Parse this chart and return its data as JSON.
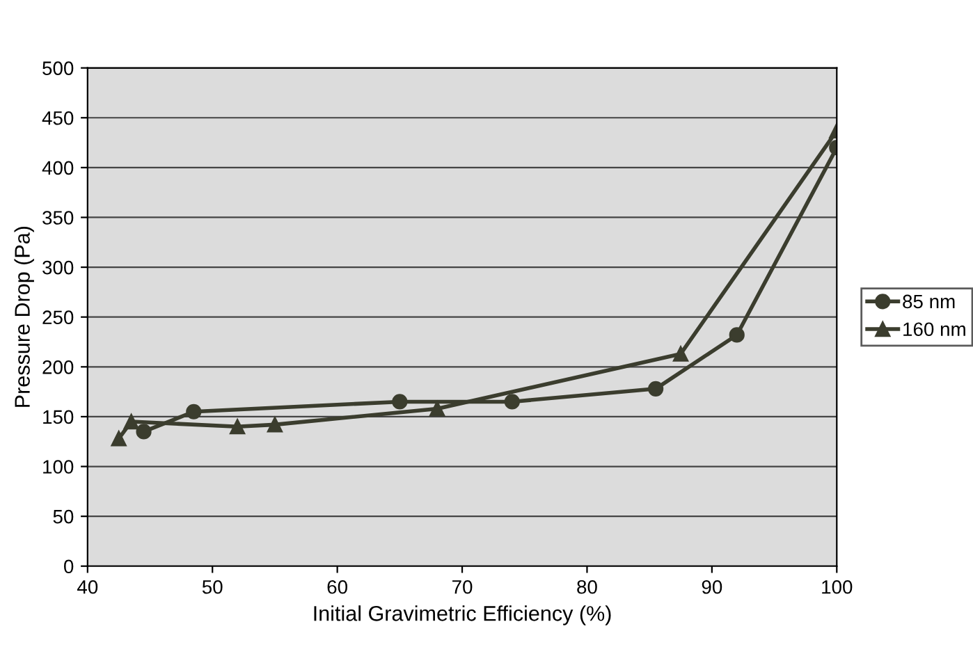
{
  "chart_data": {
    "type": "line",
    "xlabel": "Initial Gravimetric Efficiency (%)",
    "ylabel": "Pressure Drop (Pa)",
    "series": [
      {
        "name": "85 nm",
        "color": "#3b3d2e",
        "marker": "circle",
        "x": [
          44.5,
          48.5,
          65,
          74,
          85.5,
          92,
          100
        ],
        "values": [
          135,
          155,
          165,
          165,
          178,
          232,
          420
        ]
      },
      {
        "name": "160 nm",
        "color": "#3b3d2e",
        "marker": "triangle",
        "x": [
          42.5,
          43.5,
          52,
          55,
          68,
          87.5,
          100
        ],
        "values": [
          128,
          145,
          140,
          142,
          158,
          213,
          437
        ]
      }
    ],
    "xlim": [
      40,
      100
    ],
    "xticks": [
      40,
      50,
      60,
      70,
      80,
      90,
      100
    ],
    "ylim": [
      0,
      500
    ],
    "yticks": [
      0,
      50,
      100,
      150,
      200,
      250,
      300,
      350,
      400,
      450,
      500
    ],
    "grid": "y",
    "legend": "right"
  }
}
